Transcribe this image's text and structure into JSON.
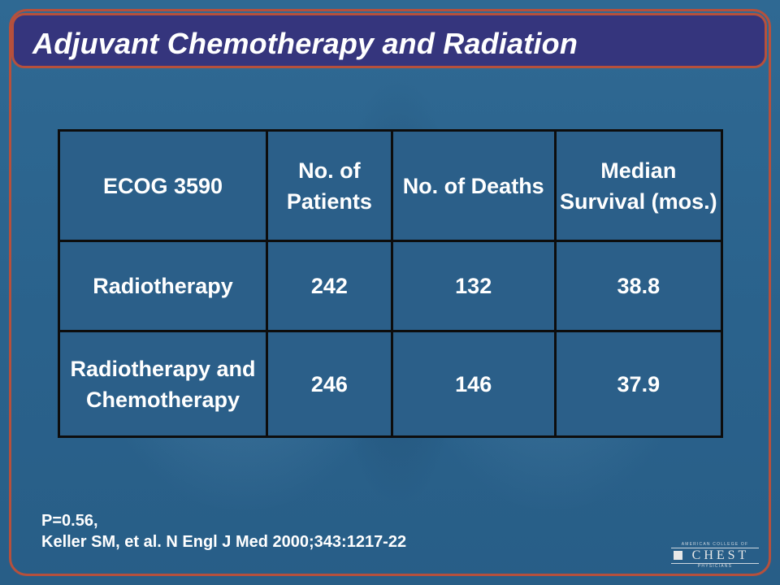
{
  "slide": {
    "title": "Adjuvant Chemotherapy and Radiation"
  },
  "table": {
    "header": {
      "col1": "ECOG 3590",
      "col2": "No. of Patients",
      "col3": "No. of Deaths",
      "col4": "Median Survival (mos.)"
    },
    "rows": [
      {
        "group": "Radiotherapy",
        "patients": "242",
        "deaths": "132",
        "median_survival": "38.8"
      },
      {
        "group": "Radiotherapy and Chemotherapy",
        "patients": "246",
        "deaths": "146",
        "median_survival": "37.9"
      }
    ]
  },
  "footnote": {
    "p_value": "P=0.56,",
    "citation": "Keller SM, et al. N Engl J Med 2000;343:1217-22"
  },
  "logo": {
    "top_text": "AMERICAN COLLEGE OF",
    "word": "CHEST",
    "bottom_text": "PHYSICIANS"
  }
}
